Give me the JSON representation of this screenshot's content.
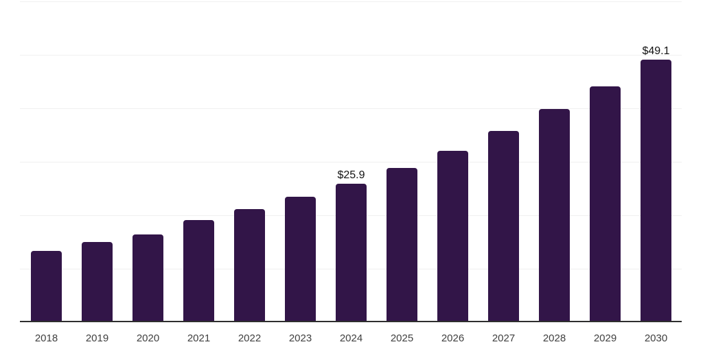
{
  "chart_data": {
    "type": "bar",
    "title": "",
    "xlabel": "",
    "ylabel": "",
    "categories": [
      "2018",
      "2019",
      "2020",
      "2021",
      "2022",
      "2023",
      "2024",
      "2025",
      "2026",
      "2027",
      "2028",
      "2029",
      "2030"
    ],
    "values": [
      13.3,
      15.0,
      16.4,
      19.1,
      21.2,
      23.4,
      25.9,
      28.8,
      32.1,
      35.8,
      39.9,
      44.1,
      49.1
    ],
    "point_labels": [
      null,
      null,
      null,
      null,
      null,
      null,
      "$25.9",
      null,
      null,
      null,
      null,
      null,
      "$49.1"
    ],
    "ylim": [
      0,
      60
    ],
    "gridline_step": 10,
    "grid": true,
    "legend": false,
    "y_axis_tick_labels_visible": false,
    "colors": {
      "bar": "#321548",
      "grid": "#f0f0f0",
      "axis": "#2e2e2e",
      "tick_label": "#404040",
      "value_label": "#121212",
      "background": "#ffffff"
    }
  }
}
